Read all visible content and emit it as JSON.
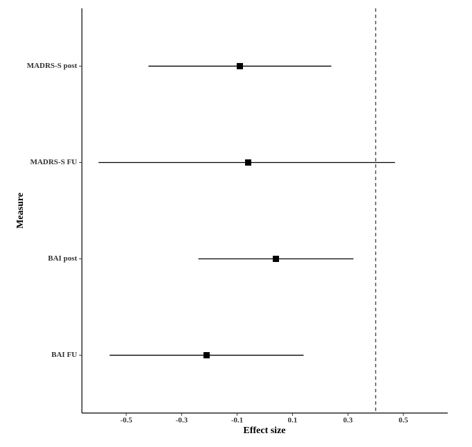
{
  "chart_data": {
    "type": "forest",
    "x_label": "Effect size",
    "y_label": "Measure",
    "categories": [
      "MADRS-S post",
      "MADRS-S FU",
      "BAI post",
      "BAI FU"
    ],
    "values": [
      -0.09,
      -0.06,
      0.04,
      -0.21
    ],
    "lower": [
      -0.42,
      -0.6,
      -0.24,
      -0.56
    ],
    "upper": [
      0.24,
      0.47,
      0.32,
      0.14
    ],
    "color": "#000000",
    "reference_line": 0.4,
    "xlim": [
      -0.66,
      0.66
    ],
    "xticks": [
      -0.5,
      -0.3,
      -0.1,
      0.1,
      0.3,
      0.5
    ]
  }
}
